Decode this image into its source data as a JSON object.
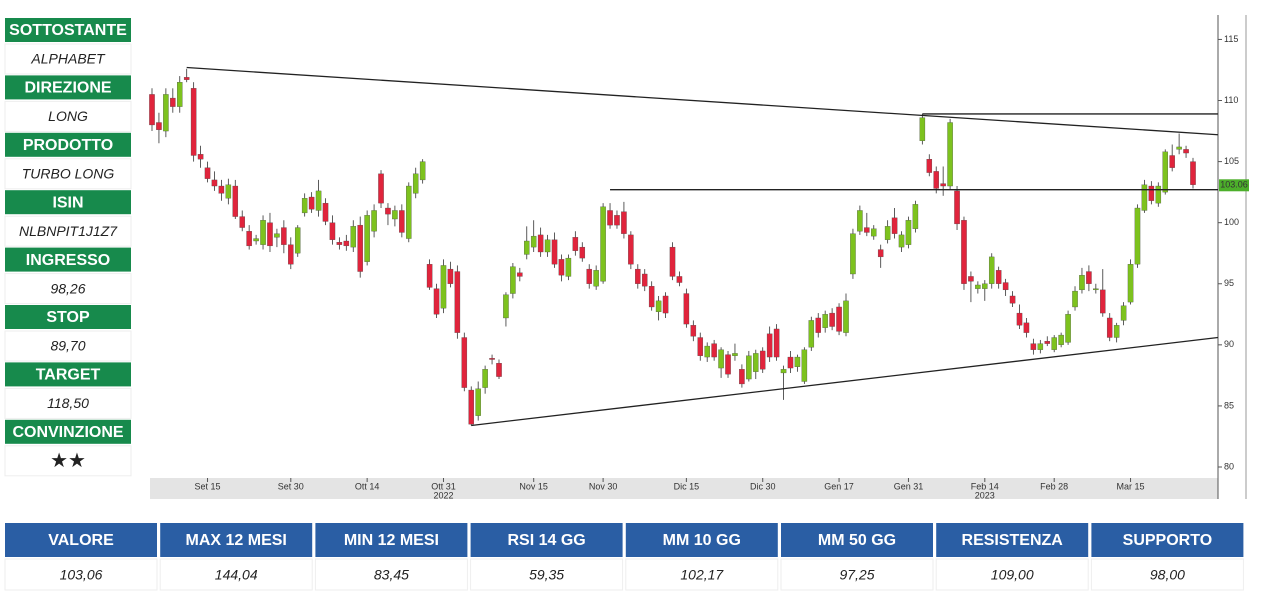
{
  "sidebar": [
    {
      "label": "SOTTOSTANTE",
      "value": "ALPHABET"
    },
    {
      "label": "DIREZIONE",
      "value": "LONG"
    },
    {
      "label": "PRODOTTO",
      "value": "TURBO LONG"
    },
    {
      "label": "ISIN",
      "value": "NLBNPIT1J1Z7"
    },
    {
      "label": "INGRESSO",
      "value": "98,26"
    },
    {
      "label": "STOP",
      "value": "89,70"
    },
    {
      "label": "TARGET",
      "value": "118,50"
    },
    {
      "label": "CONVINZIONE",
      "value": "★★"
    }
  ],
  "chart_data": {
    "type": "candlestick",
    "up_color": "#7dc21e",
    "down_color": "#e0243c",
    "ylim": [
      79.1,
      117
    ],
    "yticks": [
      80,
      85,
      90,
      95,
      100,
      105,
      110,
      115
    ],
    "last_price": 103.06,
    "last_price_color": "#4caf2a",
    "categories": [
      null,
      null,
      null,
      null,
      null,
      null,
      null,
      null,
      "Set 15",
      null,
      null,
      null,
      null,
      null,
      null,
      null,
      null,
      null,
      null,
      null,
      "Set 30",
      null,
      null,
      null,
      null,
      null,
      null,
      null,
      null,
      null,
      null,
      "Ott 14",
      null,
      null,
      null,
      null,
      null,
      null,
      null,
      null,
      null,
      null,
      "Ott 31",
      null,
      null,
      null,
      null,
      null,
      null,
      null,
      null,
      null,
      null,
      null,
      null,
      "Nov 15",
      null,
      null,
      null,
      null,
      null,
      null,
      null,
      null,
      null,
      "Nov 30",
      null,
      null,
      null,
      null,
      null,
      null,
      null,
      null,
      null,
      null,
      null,
      "Dic 15",
      null,
      null,
      null,
      null,
      null,
      null,
      null,
      null,
      null,
      null,
      "Dic 30",
      null,
      null,
      null,
      null,
      null,
      null,
      null,
      null,
      null,
      null,
      "Gen 17",
      null,
      null,
      null,
      null,
      null,
      null,
      null,
      null,
      null,
      "Gen 31",
      null,
      null,
      null,
      null,
      null,
      null,
      null,
      null,
      null,
      null,
      "Feb 14",
      null,
      null,
      null,
      null,
      null,
      null,
      null,
      null,
      null,
      "Feb 28",
      null,
      null,
      null,
      null,
      null,
      null,
      null,
      null,
      null,
      null,
      "Mar 15",
      null,
      null,
      null,
      null,
      null,
      null,
      null,
      null,
      null
    ],
    "x_sublabels": [
      null,
      null,
      null,
      null,
      null,
      null,
      null,
      null,
      null,
      null,
      null,
      null,
      null,
      null,
      null,
      null,
      null,
      null,
      null,
      null,
      null,
      null,
      null,
      null,
      null,
      null,
      null,
      null,
      null,
      null,
      null,
      null,
      null,
      null,
      null,
      null,
      null,
      null,
      null,
      null,
      null,
      null,
      "2022",
      null,
      null,
      null,
      null,
      null,
      null,
      null,
      null,
      null,
      null,
      null,
      null,
      null,
      null,
      null,
      null,
      null,
      null,
      null,
      null,
      null,
      null,
      null,
      null,
      null,
      null,
      null,
      null,
      null,
      null,
      null,
      null,
      null,
      null,
      null,
      null,
      null,
      null,
      null,
      null,
      null,
      null,
      null,
      null,
      null,
      null,
      null,
      null,
      null,
      null,
      null,
      null,
      null,
      null,
      null,
      null,
      null,
      null,
      null,
      null,
      null,
      null,
      null,
      null,
      null,
      null,
      null,
      null,
      null,
      null,
      null,
      null,
      null,
      null,
      null,
      null,
      null,
      "2023",
      null,
      null,
      null,
      null,
      null,
      null,
      null,
      null,
      null,
      null,
      null,
      null,
      null,
      null,
      null,
      null,
      null,
      null,
      null,
      null,
      null,
      null,
      null,
      null,
      null,
      null,
      null,
      null,
      null,
      null
    ],
    "ohlc": [
      [
        110.5,
        111,
        107.5,
        108
      ],
      [
        108.2,
        109,
        106.5,
        107.6
      ],
      [
        107.5,
        111,
        107,
        110.5
      ],
      [
        110.2,
        111,
        109,
        109.5
      ],
      [
        109.5,
        112,
        109,
        111.5
      ],
      [
        111.9,
        112.6,
        111.5,
        111.7
      ],
      [
        111,
        111.5,
        105,
        105.5
      ],
      [
        105.6,
        106.3,
        104.5,
        105.2
      ],
      [
        104.5,
        105,
        103.3,
        103.6
      ],
      [
        103.5,
        104.2,
        102.6,
        103
      ],
      [
        103,
        103.5,
        101.8,
        102.4
      ],
      [
        102,
        103.6,
        101.5,
        103.1
      ],
      [
        103,
        103.5,
        100.3,
        100.5
      ],
      [
        100.5,
        101,
        99.3,
        99.6
      ],
      [
        99.3,
        99.8,
        97.8,
        98.1
      ],
      [
        98.5,
        99,
        98.2,
        98.7
      ],
      [
        98.2,
        100.6,
        97.8,
        100.2
      ],
      [
        100,
        100.8,
        97.6,
        98.1
      ],
      [
        98.8,
        99.5,
        98,
        99.1
      ],
      [
        99.6,
        100.2,
        97.5,
        98.2
      ],
      [
        98.2,
        98.8,
        96.2,
        96.6
      ],
      [
        97.5,
        99.8,
        97.2,
        99.6
      ],
      [
        100.8,
        102.4,
        100.5,
        102
      ],
      [
        102.1,
        102.5,
        100.8,
        101.1
      ],
      [
        101,
        103.5,
        100.5,
        102.6
      ],
      [
        101.6,
        102,
        99.8,
        100.1
      ],
      [
        100,
        100.6,
        98.2,
        98.6
      ],
      [
        98.4,
        98.8,
        97.8,
        98.2
      ],
      [
        98.5,
        99,
        97.7,
        98.1
      ],
      [
        98,
        100.2,
        97.6,
        99.7
      ],
      [
        99.8,
        100.5,
        95.5,
        96
      ],
      [
        96.8,
        101,
        96.5,
        100.6
      ],
      [
        99.3,
        101.5,
        98.8,
        101
      ],
      [
        104,
        104.3,
        101.2,
        101.6
      ],
      [
        101.2,
        101.6,
        99.8,
        100.7
      ],
      [
        100.3,
        101.4,
        99.7,
        101
      ],
      [
        101,
        101.5,
        98.8,
        99.2
      ],
      [
        98.7,
        103.3,
        98.4,
        103
      ],
      [
        102.4,
        104.5,
        102,
        104
      ],
      [
        103.5,
        105.2,
        103.2,
        105
      ],
      [
        96.6,
        97,
        94.5,
        94.7
      ],
      [
        94.6,
        95,
        92.2,
        92.5
      ],
      [
        93,
        97,
        92.6,
        96.5
      ],
      [
        96.2,
        96.8,
        94.7,
        95
      ],
      [
        96,
        96.5,
        90.5,
        91
      ],
      [
        90.6,
        91,
        86.2,
        86.5
      ],
      [
        86.3,
        86.6,
        83.4,
        83.5
      ],
      [
        84.2,
        87,
        83.8,
        86.4
      ],
      [
        86.5,
        88.3,
        86,
        88
      ],
      [
        88.9,
        89.2,
        88.4,
        88.8
      ],
      [
        88.5,
        88.8,
        87.2,
        87.4
      ],
      [
        92.2,
        94.3,
        91.5,
        94.1
      ],
      [
        94.2,
        96.7,
        93.8,
        96.4
      ],
      [
        95.9,
        96.3,
        95.2,
        95.6
      ],
      [
        97.4,
        99.7,
        97,
        98.5
      ],
      [
        98,
        100.2,
        97.6,
        98.9
      ],
      [
        99,
        99.6,
        97.2,
        97.6
      ],
      [
        97.6,
        99,
        97.2,
        98.6
      ],
      [
        98.6,
        99.2,
        96.3,
        96.6
      ],
      [
        97,
        97.4,
        95.2,
        95.7
      ],
      [
        95.6,
        97.4,
        95.3,
        97.1
      ],
      [
        98.8,
        99.3,
        97.3,
        97.7
      ],
      [
        98,
        98.4,
        96.8,
        97.1
      ],
      [
        96.2,
        96.6,
        94.6,
        95
      ],
      [
        94.8,
        96.5,
        94.5,
        96.1
      ],
      [
        95.2,
        101.6,
        95,
        101.3
      ],
      [
        101,
        101.6,
        99.5,
        99.8
      ],
      [
        100.6,
        101,
        99.5,
        99.8
      ],
      [
        100.9,
        101.7,
        98.7,
        99.1
      ],
      [
        99,
        99.3,
        96.2,
        96.6
      ],
      [
        96.2,
        96.6,
        94.6,
        95
      ],
      [
        95.8,
        96.2,
        94.4,
        94.8
      ],
      [
        94.8,
        95.2,
        92.8,
        93.1
      ],
      [
        92.7,
        94,
        92,
        93.6
      ],
      [
        94,
        94.3,
        92.2,
        92.6
      ],
      [
        98,
        98.4,
        95.3,
        95.6
      ],
      [
        95.6,
        96,
        94.8,
        95.1
      ],
      [
        94.2,
        94.6,
        91.4,
        91.7
      ],
      [
        91.6,
        92,
        90.3,
        90.7
      ],
      [
        90.6,
        91,
        88.7,
        89.1
      ],
      [
        89,
        90.2,
        88.6,
        89.9
      ],
      [
        90.1,
        90.4,
        88.7,
        89
      ],
      [
        88.1,
        89.8,
        87.3,
        89.6
      ],
      [
        89.2,
        89.5,
        87.3,
        87.6
      ],
      [
        89.1,
        90.1,
        88.7,
        89.3
      ],
      [
        88,
        88.4,
        86.5,
        86.8
      ],
      [
        87.2,
        89.5,
        87,
        89.1
      ],
      [
        87.8,
        89.6,
        87.2,
        89.3
      ],
      [
        89.5,
        89.8,
        87.7,
        88
      ],
      [
        90.9,
        91.5,
        88.6,
        89
      ],
      [
        91.3,
        91.7,
        88.7,
        89
      ],
      [
        87.7,
        88.3,
        85.5,
        88
      ],
      [
        89,
        89.5,
        87.7,
        88.1
      ],
      [
        88.2,
        89.2,
        87.8,
        89
      ],
      [
        87,
        89.8,
        86.8,
        89.6
      ],
      [
        89.8,
        92.3,
        89.5,
        92
      ],
      [
        92.2,
        92.6,
        90.6,
        91
      ],
      [
        91.4,
        92.8,
        91,
        92.5
      ],
      [
        92.6,
        93,
        91.2,
        91.5
      ],
      [
        93.1,
        93.4,
        90.8,
        91.1
      ],
      [
        91,
        94.2,
        90.7,
        93.6
      ],
      [
        95.8,
        99.5,
        95.4,
        99.1
      ],
      [
        99.3,
        101.4,
        99,
        101
      ],
      [
        99.6,
        100.8,
        98.9,
        99.2
      ],
      [
        98.9,
        99.8,
        98.6,
        99.5
      ],
      [
        97.8,
        98.2,
        96.3,
        97.2
      ],
      [
        98.6,
        100.2,
        98.3,
        99.7
      ],
      [
        100.4,
        101.2,
        98.7,
        99.1
      ],
      [
        98,
        99.3,
        97.6,
        99
      ],
      [
        98.2,
        100.5,
        97.9,
        100.2
      ],
      [
        99.5,
        101.8,
        99.2,
        101.5
      ],
      [
        106.7,
        108.9,
        106.4,
        108.6
      ],
      [
        105.2,
        105.6,
        103.8,
        104.1
      ],
      [
        104.2,
        104.6,
        102.4,
        102.8
      ],
      [
        103.2,
        104.6,
        102.2,
        103
      ],
      [
        103,
        108.5,
        102.7,
        108.2
      ],
      [
        102.6,
        103,
        99.4,
        99.9
      ],
      [
        100.2,
        100.5,
        94.5,
        95
      ],
      [
        95.6,
        96,
        93.5,
        95.2
      ],
      [
        94.6,
        95.2,
        94.2,
        94.9
      ],
      [
        94.6,
        95.3,
        93.6,
        95
      ],
      [
        95,
        97.5,
        94.6,
        97.2
      ],
      [
        96.1,
        96.4,
        94.6,
        95
      ],
      [
        95.1,
        95.4,
        94,
        94.5
      ],
      [
        94,
        94.4,
        93.1,
        93.4
      ],
      [
        92.6,
        93.3,
        91.3,
        91.6
      ],
      [
        91.8,
        92.2,
        90.6,
        91
      ],
      [
        90.1,
        90.5,
        89.2,
        89.6
      ],
      [
        89.6,
        90.4,
        89.3,
        90.1
      ],
      [
        90.3,
        90.7,
        89.9,
        90.1
      ],
      [
        89.6,
        90.8,
        89.4,
        90.6
      ],
      [
        90,
        91,
        89.8,
        90.8
      ],
      [
        90.2,
        92.8,
        90,
        92.5
      ],
      [
        93.1,
        94.8,
        92.8,
        94.4
      ],
      [
        94.5,
        96.3,
        94.2,
        95.7
      ],
      [
        96,
        96.5,
        94.4,
        95
      ],
      [
        94.5,
        95,
        94.2,
        94.6
      ],
      [
        94.5,
        96.2,
        92.3,
        92.6
      ],
      [
        92.2,
        92.6,
        90.3,
        90.6
      ],
      [
        90.6,
        91.8,
        90.2,
        91.6
      ],
      [
        92,
        93.5,
        91.6,
        93.2
      ],
      [
        93.5,
        97,
        93.3,
        96.6
      ],
      [
        96.6,
        101.5,
        96.3,
        101.2
      ],
      [
        101,
        103.5,
        100.8,
        103.1
      ],
      [
        103,
        103.4,
        101.5,
        101.8
      ],
      [
        101.6,
        103.3,
        101.3,
        103
      ],
      [
        102.5,
        106,
        102.3,
        105.8
      ],
      [
        105.5,
        106.4,
        104.2,
        104.5
      ],
      [
        106,
        107.3,
        105.6,
        106.2
      ],
      [
        106,
        106.3,
        105.3,
        105.7
      ],
      [
        105,
        105.3,
        102.8,
        103.1
      ]
    ],
    "trendlines": [
      {
        "start": 5,
        "y1": 112.7,
        "y2": 107.2
      },
      {
        "start": 46,
        "y1": 83.4,
        "y2": 90.6
      },
      {
        "start": 111,
        "y1": 108.9,
        "y2": 108.9
      },
      {
        "start": 66,
        "y1": 102.7,
        "y2": 102.7
      }
    ]
  },
  "table": {
    "headers": [
      "VALORE",
      "MAX 12 MESI",
      "MIN 12 MESI",
      "RSI 14 GG",
      "MM 10 GG",
      "MM 50 GG",
      "RESISTENZA",
      "SUPPORTO"
    ],
    "values": [
      "103,06",
      "144,04",
      "83,45",
      "59,35",
      "102,17",
      "97,25",
      "109,00",
      "98,00"
    ]
  }
}
